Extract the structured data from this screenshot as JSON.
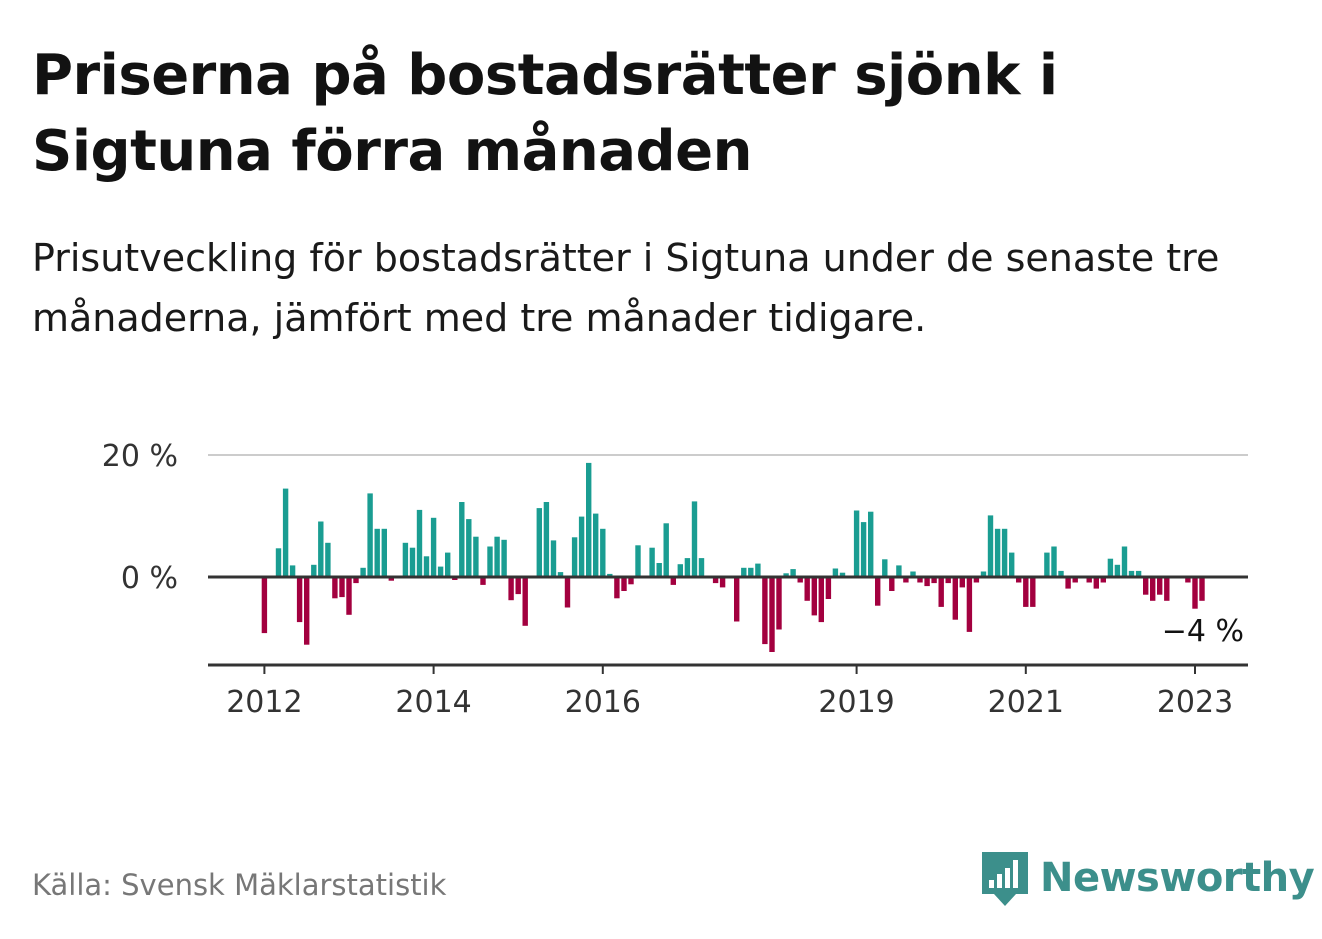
{
  "title": "Priserna på bostadsrätter sjönk i Sigtuna förra månaden",
  "subtitle": "Prisutveckling för bostadsrätter i Sigtuna under de senaste tre månaderna, jämfört med tre månader tidigare.",
  "source": "Källa: Svensk Mäklarstatistik",
  "brand": "Newsworthy",
  "colors": {
    "positive": "#1a9d92",
    "negative": "#a3003f",
    "brand": "#3c8f8b",
    "grid": "#cccccc",
    "axis": "#333333"
  },
  "chart_data": {
    "type": "bar",
    "title": "Priserna på bostadsrätter sjönk i Sigtuna förra månaden",
    "subtitle": "Prisutveckling för bostadsrätter i Sigtuna under de senaste tre månaderna, jämfört med tre månader tidigare.",
    "ylim": [
      -13,
      20
    ],
    "y_ticks": [
      {
        "value": 20,
        "label": "20 %"
      },
      {
        "value": 0,
        "label": "0 %"
      }
    ],
    "x_ticks": [
      {
        "date": "2012-01",
        "label": "2012"
      },
      {
        "date": "2014-01",
        "label": "2014"
      },
      {
        "date": "2016-01",
        "label": "2016"
      },
      {
        "date": "2019-01",
        "label": "2019"
      },
      {
        "date": "2021-01",
        "label": "2021"
      },
      {
        "date": "2023-01",
        "label": "2023"
      }
    ],
    "grid": true,
    "annotation": {
      "date": "2023-02",
      "label": "−4 %"
    },
    "series": [
      {
        "values": [
          [
            "2012-01",
            -9.2
          ],
          [
            "2012-03",
            4.7
          ],
          [
            "2012-04",
            14.5
          ],
          [
            "2012-05",
            1.9
          ],
          [
            "2012-06",
            -7.4
          ],
          [
            "2012-07",
            -11.1
          ],
          [
            "2012-08",
            2.0
          ],
          [
            "2012-09",
            9.1
          ],
          [
            "2012-10",
            5.6
          ],
          [
            "2012-11",
            -3.5
          ],
          [
            "2012-12",
            -3.3
          ],
          [
            "2013-01",
            -6.2
          ],
          [
            "2013-02",
            -1.0
          ],
          [
            "2013-03",
            1.5
          ],
          [
            "2013-04",
            13.7
          ],
          [
            "2013-05",
            7.9
          ],
          [
            "2013-06",
            7.9
          ],
          [
            "2013-07",
            -0.6
          ],
          [
            "2013-09",
            5.6
          ],
          [
            "2013-10",
            4.8
          ],
          [
            "2013-11",
            11.0
          ],
          [
            "2013-12",
            3.4
          ],
          [
            "2014-01",
            9.7
          ],
          [
            "2014-02",
            1.7
          ],
          [
            "2014-03",
            4.0
          ],
          [
            "2014-04",
            -0.5
          ],
          [
            "2014-05",
            12.3
          ],
          [
            "2014-06",
            9.5
          ],
          [
            "2014-07",
            6.6
          ],
          [
            "2014-08",
            -1.3
          ],
          [
            "2014-09",
            5.0
          ],
          [
            "2014-10",
            6.6
          ],
          [
            "2014-11",
            6.1
          ],
          [
            "2014-12",
            -3.8
          ],
          [
            "2015-01",
            -2.8
          ],
          [
            "2015-02",
            -8.0
          ],
          [
            "2015-04",
            11.3
          ],
          [
            "2015-05",
            12.3
          ],
          [
            "2015-06",
            6.0
          ],
          [
            "2015-07",
            0.8
          ],
          [
            "2015-08",
            -5.0
          ],
          [
            "2015-09",
            6.5
          ],
          [
            "2015-10",
            9.9
          ],
          [
            "2015-11",
            18.7
          ],
          [
            "2015-12",
            10.4
          ],
          [
            "2016-01",
            7.9
          ],
          [
            "2016-02",
            0.5
          ],
          [
            "2016-03",
            -3.5
          ],
          [
            "2016-04",
            -2.3
          ],
          [
            "2016-05",
            -1.2
          ],
          [
            "2016-06",
            5.2
          ],
          [
            "2016-08",
            4.8
          ],
          [
            "2016-09",
            2.3
          ],
          [
            "2016-10",
            8.8
          ],
          [
            "2016-11",
            -1.3
          ],
          [
            "2016-12",
            2.1
          ],
          [
            "2017-01",
            3.1
          ],
          [
            "2017-02",
            12.4
          ],
          [
            "2017-03",
            3.1
          ],
          [
            "2017-05",
            -1.0
          ],
          [
            "2017-06",
            -1.7
          ],
          [
            "2017-08",
            -7.3
          ],
          [
            "2017-09",
            1.5
          ],
          [
            "2017-10",
            1.5
          ],
          [
            "2017-11",
            2.2
          ],
          [
            "2017-12",
            -11.0
          ],
          [
            "2018-01",
            -12.3
          ],
          [
            "2018-02",
            -8.6
          ],
          [
            "2018-03",
            0.6
          ],
          [
            "2018-04",
            1.3
          ],
          [
            "2018-05",
            -0.9
          ],
          [
            "2018-06",
            -3.9
          ],
          [
            "2018-07",
            -6.3
          ],
          [
            "2018-08",
            -7.4
          ],
          [
            "2018-09",
            -3.6
          ],
          [
            "2018-10",
            1.4
          ],
          [
            "2018-11",
            0.7
          ],
          [
            "2019-01",
            10.9
          ],
          [
            "2019-02",
            9.0
          ],
          [
            "2019-03",
            10.7
          ],
          [
            "2019-04",
            -4.7
          ],
          [
            "2019-05",
            2.9
          ],
          [
            "2019-06",
            -2.3
          ],
          [
            "2019-07",
            1.9
          ],
          [
            "2019-08",
            -0.9
          ],
          [
            "2019-09",
            0.9
          ],
          [
            "2019-10",
            -0.9
          ],
          [
            "2019-11",
            -1.5
          ],
          [
            "2019-12",
            -1.0
          ],
          [
            "2020-01",
            -4.9
          ],
          [
            "2020-02",
            -1.0
          ],
          [
            "2020-03",
            -7.0
          ],
          [
            "2020-04",
            -1.7
          ],
          [
            "2020-05",
            -9.0
          ],
          [
            "2020-06",
            -0.9
          ],
          [
            "2020-07",
            0.9
          ],
          [
            "2020-08",
            10.1
          ],
          [
            "2020-09",
            7.9
          ],
          [
            "2020-10",
            7.9
          ],
          [
            "2020-11",
            4.0
          ],
          [
            "2020-12",
            -0.9
          ],
          [
            "2021-01",
            -4.9
          ],
          [
            "2021-02",
            -4.9
          ],
          [
            "2021-04",
            4.0
          ],
          [
            "2021-05",
            5.0
          ],
          [
            "2021-06",
            1.0
          ],
          [
            "2021-07",
            -1.9
          ],
          [
            "2021-08",
            -0.9
          ],
          [
            "2021-10",
            -0.9
          ],
          [
            "2021-11",
            -1.9
          ],
          [
            "2021-12",
            -0.9
          ],
          [
            "2022-01",
            3.0
          ],
          [
            "2022-02",
            2.0
          ],
          [
            "2022-03",
            5.0
          ],
          [
            "2022-04",
            1.0
          ],
          [
            "2022-05",
            1.0
          ],
          [
            "2022-06",
            -2.9
          ],
          [
            "2022-07",
            -3.9
          ],
          [
            "2022-08",
            -2.9
          ],
          [
            "2022-09",
            -3.9
          ],
          [
            "2022-12",
            -0.9
          ],
          [
            "2023-01",
            -5.2
          ],
          [
            "2023-02",
            -3.9
          ]
        ]
      }
    ]
  }
}
